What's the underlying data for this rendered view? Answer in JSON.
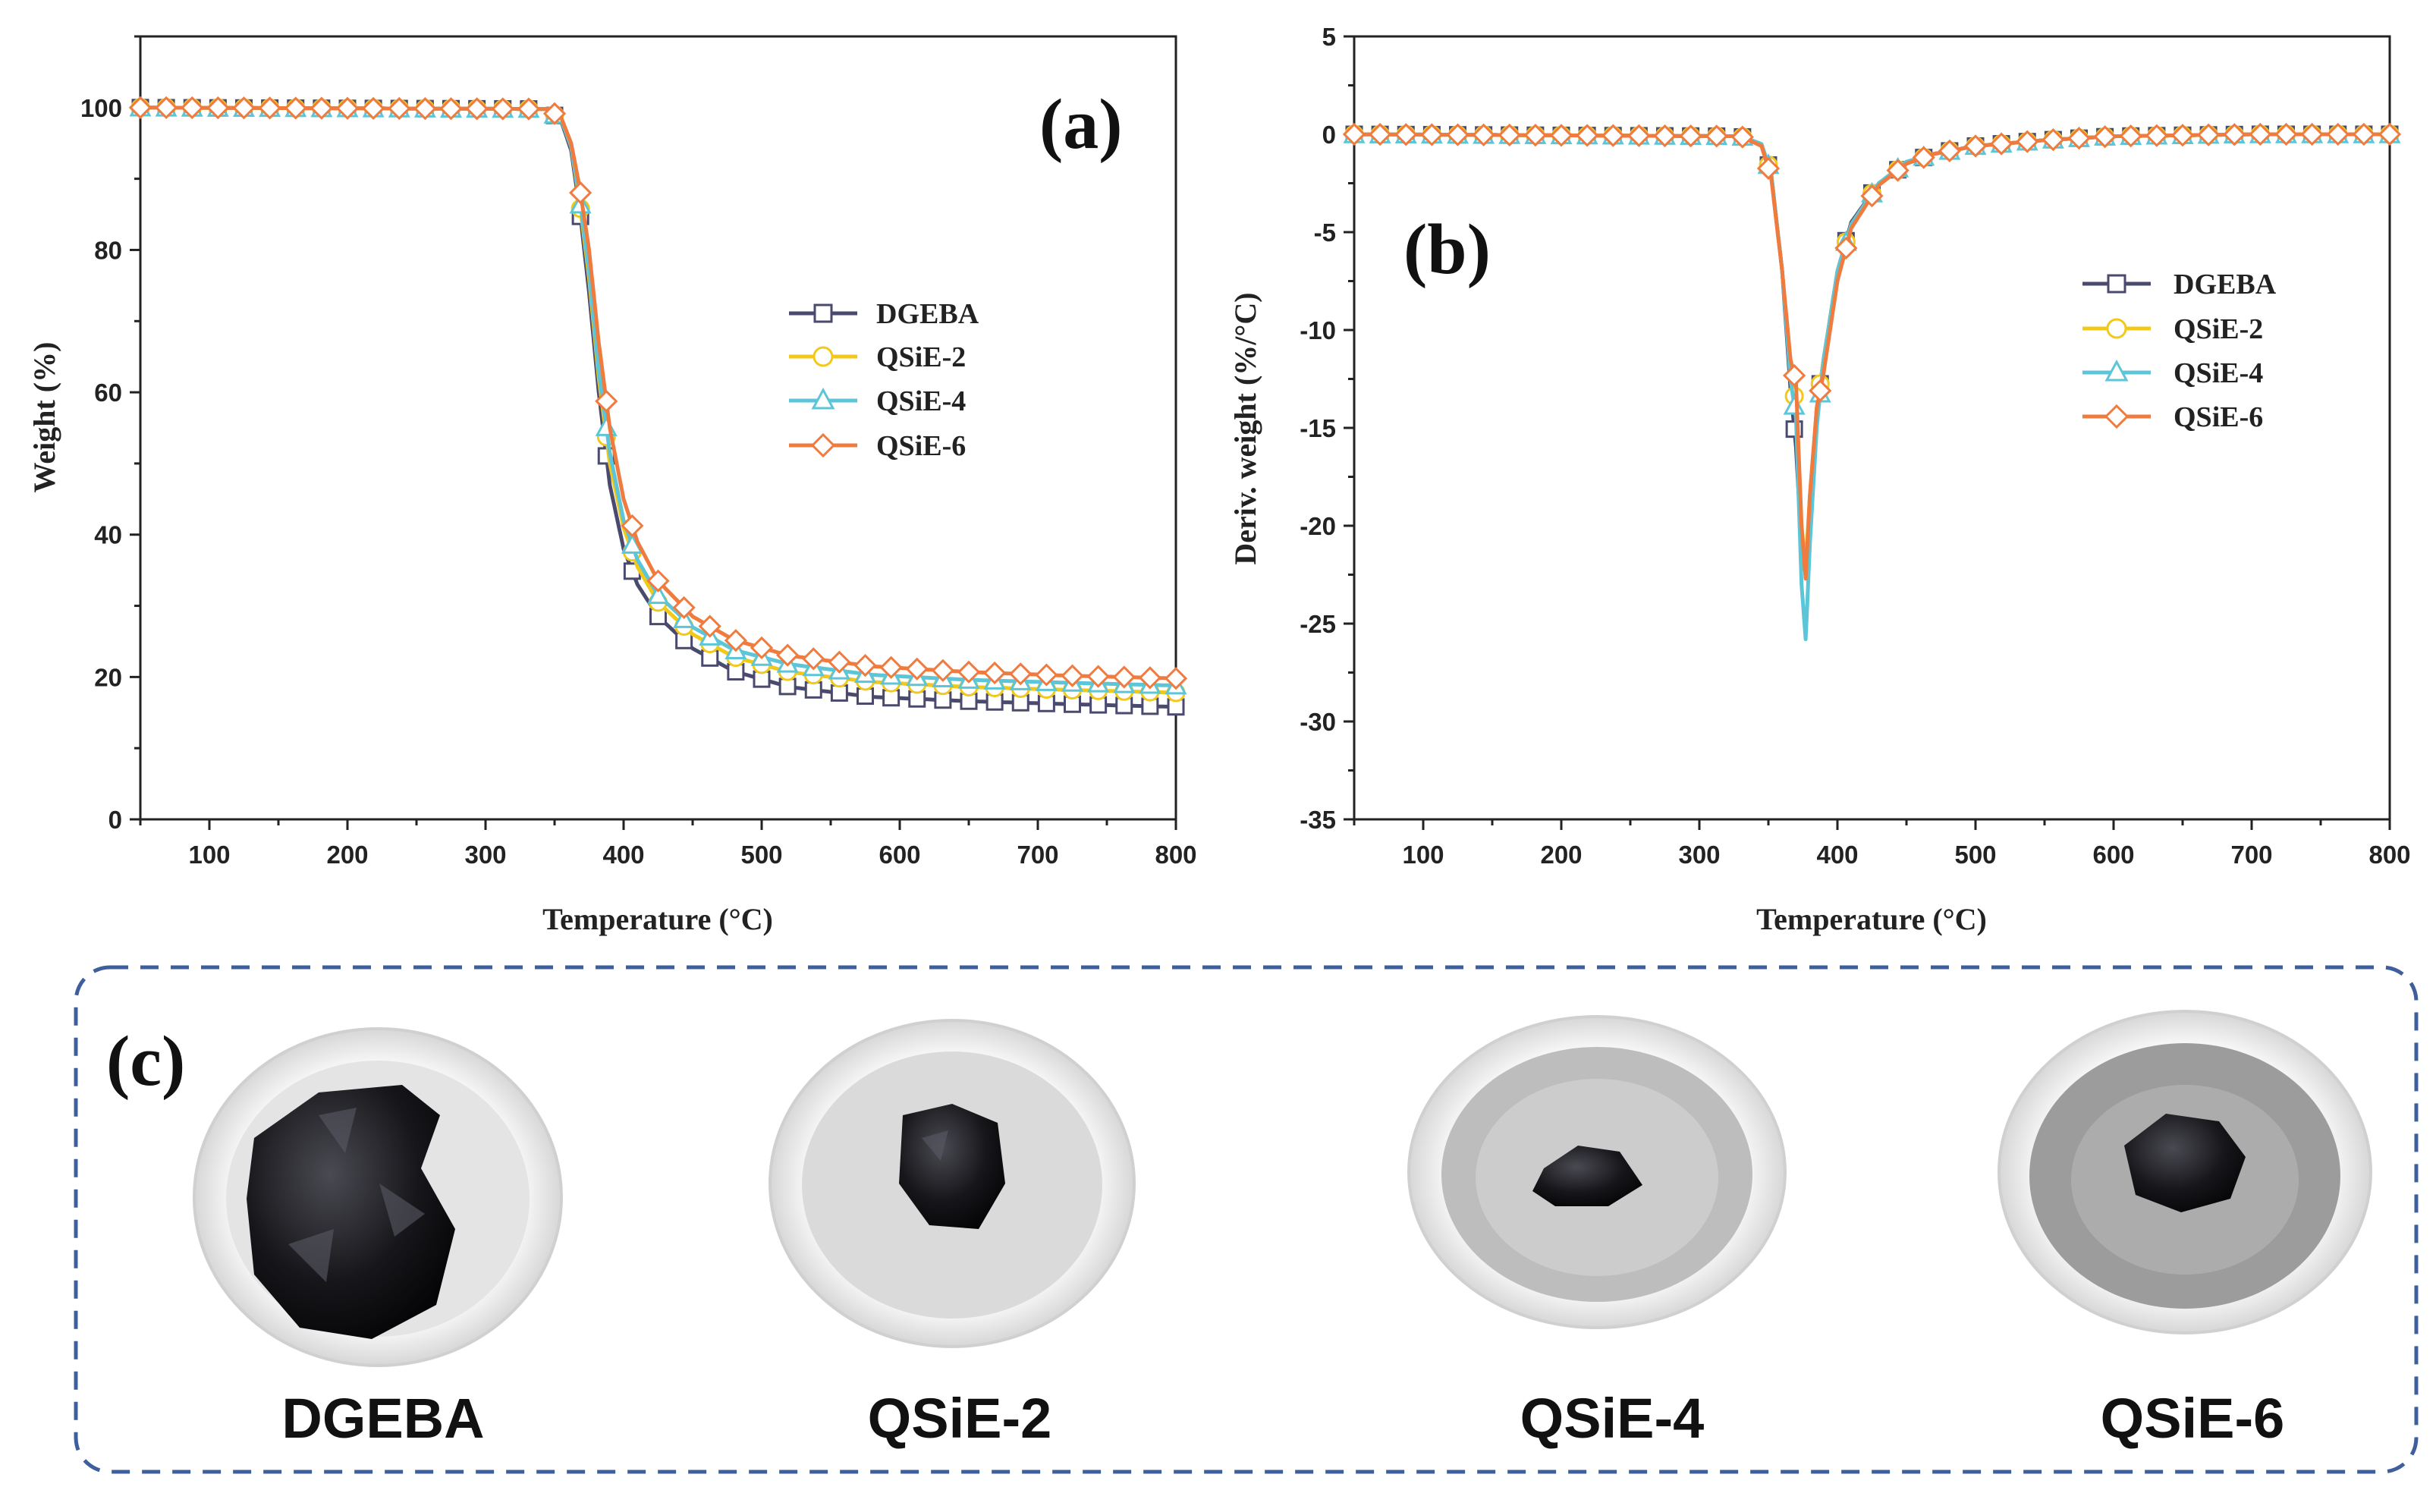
{
  "chart_data": [
    {
      "id": "a",
      "type": "line",
      "panel_label": "(a)",
      "xlabel": "Temperature (°C)",
      "ylabel": "Weight (%)",
      "xlim": [
        50,
        800
      ],
      "ylim": [
        0,
        110
      ],
      "xticks": [
        100,
        200,
        300,
        400,
        500,
        600,
        700,
        800
      ],
      "yticks": [
        0,
        20,
        40,
        60,
        80,
        100
      ],
      "legend_position": "center-right",
      "series": [
        {
          "name": "DGEBA",
          "color": "#4a4a6e",
          "marker": "square",
          "x": [
            50,
            345,
            355,
            362,
            368,
            375,
            382,
            390,
            400,
            410,
            425,
            450,
            480,
            520,
            580,
            650,
            720,
            800
          ],
          "y": [
            100,
            99.8,
            98,
            94,
            86,
            74,
            60,
            47,
            38,
            33,
            28.5,
            24,
            20.8,
            18.6,
            17.2,
            16.6,
            16.2,
            15.8
          ]
        },
        {
          "name": "QSiE-2",
          "color": "#f2c81b",
          "marker": "circle",
          "x": [
            50,
            345,
            355,
            362,
            368,
            375,
            382,
            390,
            400,
            410,
            425,
            450,
            480,
            520,
            580,
            650,
            720,
            800
          ],
          "y": [
            100,
            99.8,
            98.2,
            94.5,
            87,
            76,
            62,
            50,
            41,
            35.5,
            30.5,
            26,
            22.8,
            20.7,
            19.3,
            18.6,
            18.2,
            17.8
          ]
        },
        {
          "name": "QSiE-4",
          "color": "#5cc5d8",
          "marker": "triangle",
          "x": [
            50,
            345,
            355,
            362,
            368,
            375,
            382,
            390,
            400,
            410,
            425,
            450,
            480,
            520,
            580,
            650,
            720,
            800
          ],
          "y": [
            100,
            99.8,
            98.2,
            94.6,
            87.5,
            77,
            63,
            51.5,
            42,
            36.5,
            31.5,
            27,
            23.8,
            21.8,
            20.3,
            19.6,
            19.2,
            18.8
          ]
        },
        {
          "name": "QSiE-6",
          "color": "#f07b3f",
          "marker": "diamond",
          "x": [
            50,
            345,
            355,
            362,
            368,
            375,
            382,
            390,
            400,
            410,
            425,
            450,
            480,
            520,
            580,
            650,
            720,
            800
          ],
          "y": [
            100,
            99.8,
            98.5,
            95,
            89,
            80,
            67,
            55,
            45,
            39,
            33.5,
            28.5,
            25.2,
            23,
            21.5,
            20.7,
            20.2,
            19.8
          ]
        }
      ]
    },
    {
      "id": "b",
      "type": "line",
      "panel_label": "(b)",
      "xlabel": "Temperature (°C)",
      "ylabel": "Deriv. weight (%/°C)",
      "xlim": [
        50,
        800
      ],
      "ylim": [
        -35,
        5
      ],
      "xticks": [
        100,
        200,
        300,
        400,
        500,
        600,
        700,
        800
      ],
      "yticks": [
        5,
        0,
        -5,
        -10,
        -15,
        -20,
        -25,
        -30,
        -35
      ],
      "legend_position": "top-right",
      "series": [
        {
          "name": "DGEBA",
          "color": "#4a4a6e",
          "marker": "square",
          "x": [
            50,
            330,
            345,
            352,
            360,
            366,
            370,
            374,
            377,
            380,
            385,
            390,
            400,
            410,
            430,
            450,
            470,
            500,
            550,
            600,
            700,
            800
          ],
          "y": [
            0,
            -0.1,
            -0.5,
            -2,
            -7,
            -13,
            -16,
            -21,
            -22.5,
            -19,
            -14,
            -11.5,
            -7,
            -4.5,
            -2.5,
            -1.5,
            -1,
            -0.6,
            -0.3,
            -0.1,
            0,
            0
          ]
        },
        {
          "name": "QSiE-2",
          "color": "#f2c81b",
          "marker": "circle",
          "x": [
            50,
            330,
            345,
            352,
            360,
            366,
            370,
            374,
            377,
            380,
            385,
            390,
            400,
            410,
            430,
            450,
            470,
            500,
            550,
            600,
            700,
            800
          ],
          "y": [
            0,
            -0.1,
            -0.5,
            -2,
            -7,
            -12,
            -14,
            -20,
            -22,
            -18.5,
            -14,
            -11.5,
            -7,
            -4.6,
            -2.5,
            -1.5,
            -1,
            -0.6,
            -0.3,
            -0.1,
            0,
            0
          ]
        },
        {
          "name": "QSiE-4",
          "color": "#5cc5d8",
          "marker": "triangle",
          "x": [
            50,
            330,
            345,
            352,
            360,
            366,
            370,
            374,
            377,
            380,
            385,
            390,
            400,
            410,
            430,
            450,
            470,
            500,
            550,
            600,
            700,
            800
          ],
          "y": [
            0,
            -0.1,
            -0.5,
            -2,
            -7,
            -12.5,
            -14.5,
            -23,
            -25.8,
            -21,
            -15,
            -11.5,
            -7,
            -4.6,
            -2.5,
            -1.4,
            -1,
            -0.6,
            -0.3,
            -0.1,
            0,
            0
          ]
        },
        {
          "name": "QSiE-6",
          "color": "#f07b3f",
          "marker": "diamond",
          "x": [
            50,
            330,
            345,
            352,
            360,
            366,
            370,
            374,
            377,
            380,
            385,
            390,
            400,
            410,
            430,
            450,
            470,
            500,
            550,
            600,
            700,
            800
          ],
          "y": [
            0,
            -0.1,
            -0.6,
            -2.2,
            -7,
            -11.5,
            -12.7,
            -20,
            -22.7,
            -18.5,
            -14,
            -12.2,
            -7.5,
            -4.8,
            -2.6,
            -1.5,
            -1,
            -0.6,
            -0.3,
            -0.1,
            0,
            0
          ]
        }
      ]
    }
  ],
  "panel_c": {
    "panel_label": "(c)",
    "samples": [
      {
        "label": "DGEBA",
        "residue": "large",
        "crucible_interior": "#e4e4e4"
      },
      {
        "label": "QSiE-2",
        "residue": "small",
        "crucible_interior": "#dadada"
      },
      {
        "label": "QSiE-4",
        "residue": "small",
        "crucible_interior": "#bdbdbd"
      },
      {
        "label": "QSiE-6",
        "residue": "small",
        "crucible_interior": "#9c9c9c"
      }
    ]
  }
}
